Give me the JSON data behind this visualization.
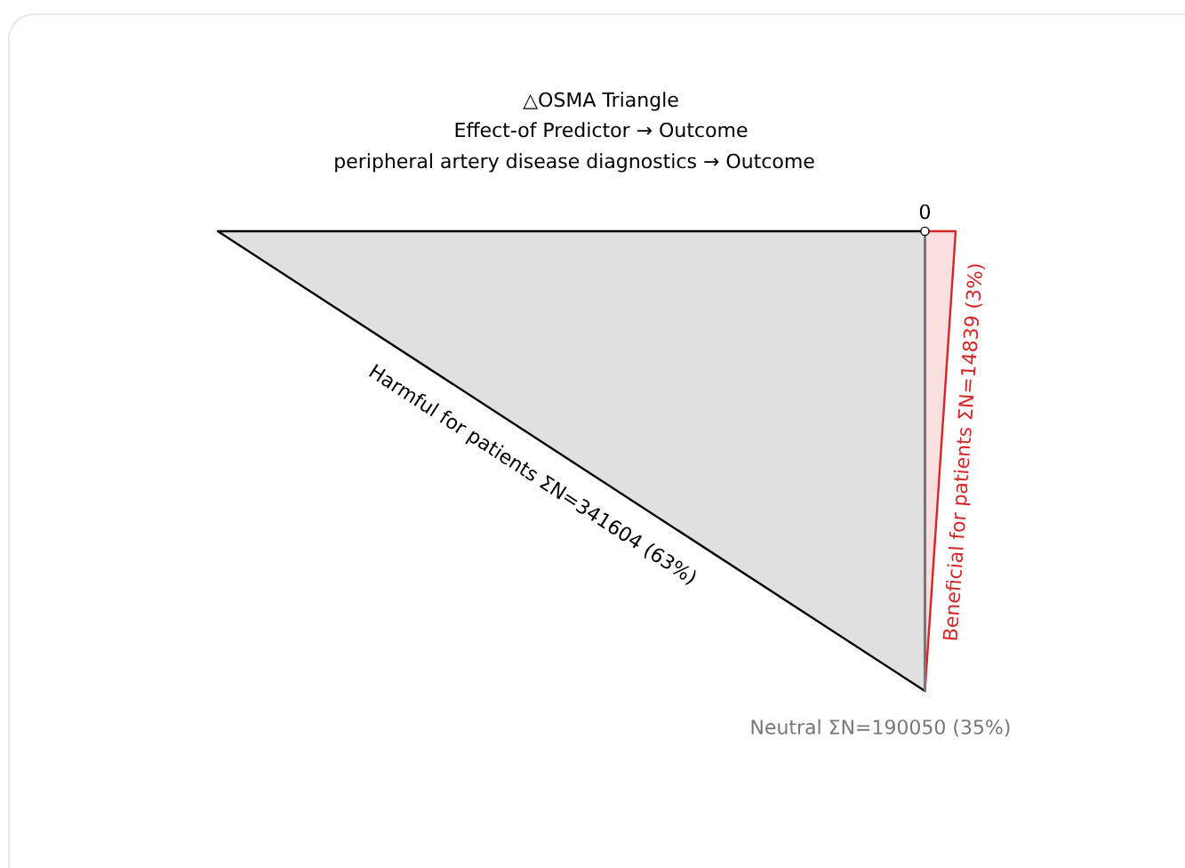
{
  "chart_data": {
    "type": "other",
    "title": "△OSMA Triangle",
    "subtitle": "Effect-of Predictor → Outcome",
    "annotations": [
      "peripheral artery disease diagnostics  →  Outcome",
      "0"
    ],
    "categories": [
      "Harmful for patients",
      "Beneficial for patients",
      "Neutral"
    ],
    "values": [
      341604,
      14839,
      190050
    ],
    "value_labels": [
      "ΣN=341604 (63%)",
      "ΣN=14839 (3%)",
      "ΣN=190050 (35%)"
    ],
    "colors": [
      "#000000",
      "#d62728",
      "#777777"
    ]
  }
}
